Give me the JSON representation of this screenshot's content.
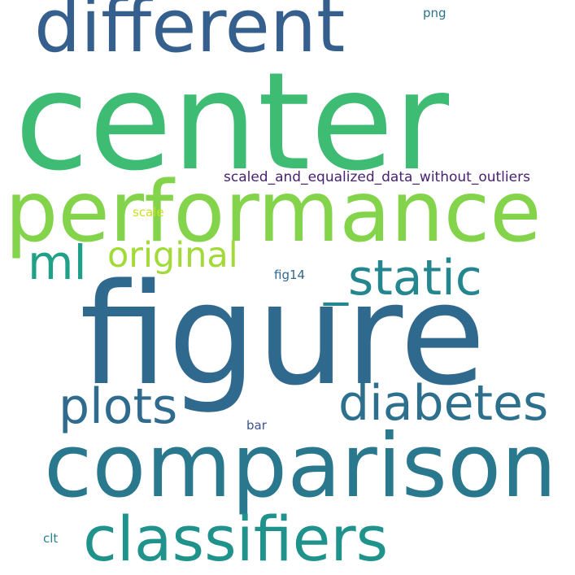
{
  "words": [
    {
      "text": "center",
      "color": "#3fbc73"
    },
    {
      "text": "figure",
      "color": "#30698e"
    },
    {
      "text": "performance",
      "color": "#84d44b"
    },
    {
      "text": "comparison",
      "color": "#2a788e"
    },
    {
      "text": "different",
      "color": "#355f8d"
    },
    {
      "text": "classifiers",
      "color": "#20928c"
    },
    {
      "text": "diabetes",
      "color": "#2d708e"
    },
    {
      "text": "_static",
      "color": "#24868e"
    },
    {
      "text": "plots",
      "color": "#2f6b8e"
    },
    {
      "text": "original",
      "color": "#a2da37"
    },
    {
      "text": "ml",
      "color": "#1fa188"
    },
    {
      "text": "scaled_and_equalized_data_without_outliers",
      "color": "#482173"
    },
    {
      "text": "scale",
      "color": "#cae11f"
    },
    {
      "text": "fig14",
      "color": "#31688e"
    },
    {
      "text": "png",
      "color": "#2c728e"
    },
    {
      "text": "bar",
      "color": "#3b528b"
    },
    {
      "text": "clt",
      "color": "#26828e"
    }
  ]
}
